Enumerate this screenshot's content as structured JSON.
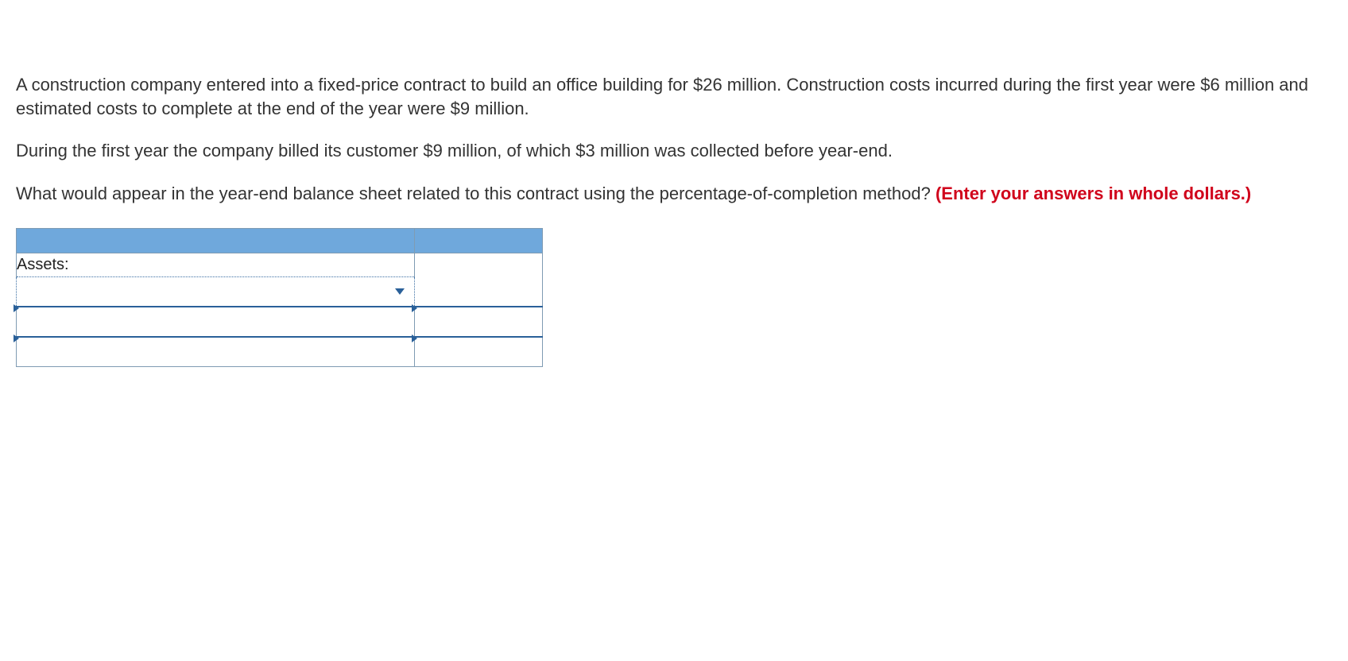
{
  "question": {
    "para1": "A construction company entered into a fixed-price contract to build an office building for $26 million. Construction costs incurred during the first year were $6 million and estimated costs to complete at the end of the year were $9 million.",
    "para2": "During the first year the company billed its customer $9 million, of which $3 million was collected before year-end.",
    "para3_prefix": "What would appear in the year-end balance sheet related to this contract using the percentage-of-completion method? ",
    "para3_bold": "(Enter your answers in whole dollars.)"
  },
  "table": {
    "section_label": "Assets:",
    "header_bg": "#6fa8dc",
    "border_color": "#7f9bb3",
    "accent_color": "#2a6099",
    "col1_width": 500,
    "col2_width": 160,
    "header_row_height": 30,
    "label_row_height": 30,
    "input_row_height": 36
  },
  "colors": {
    "text": "#333333",
    "warning": "#d0021b",
    "background": "#ffffff"
  },
  "typography": {
    "body_fontsize": 22,
    "table_fontsize": 20,
    "font_family": "Arial, Helvetica, sans-serif"
  }
}
